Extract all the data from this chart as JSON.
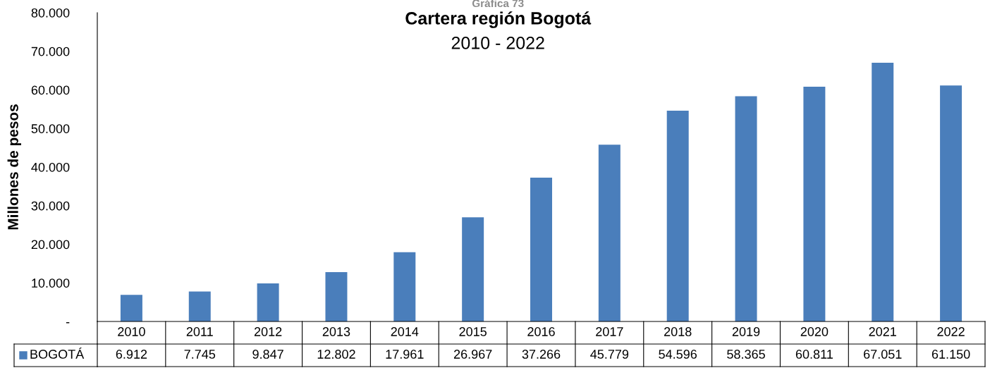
{
  "chart_data": {
    "type": "bar",
    "title": "Cartera región Bogotá",
    "subtitle": "2010 - 2022",
    "annotations": [
      "Gráfica 73"
    ],
    "ylabel": "Millones de pesos",
    "categories": [
      "2010",
      "2011",
      "2012",
      "2013",
      "2014",
      "2015",
      "2016",
      "2017",
      "2018",
      "2019",
      "2020",
      "2021",
      "2022"
    ],
    "series": [
      {
        "name": "BOGOTÁ",
        "color": "#4a7ebb",
        "values": [
          6912,
          7745,
          9847,
          12802,
          17961,
          26967,
          37266,
          45779,
          54596,
          58365,
          60811,
          67051,
          61150
        ]
      }
    ],
    "value_labels": [
      "6.912",
      "7.745",
      "9.847",
      "12.802",
      "17.961",
      "26.967",
      "37.266",
      "45.779",
      "54.596",
      "58.365",
      "60.811",
      "67.051",
      "61.150"
    ],
    "legend": "bottom left",
    "grid": false,
    "ylim": [
      0,
      80000
    ],
    "yticks": [
      {
        "value": 0,
        "label": "-"
      },
      {
        "value": 10000,
        "label": "10.000"
      },
      {
        "value": 20000,
        "label": "20.000"
      },
      {
        "value": 30000,
        "label": "30.000"
      },
      {
        "value": 40000,
        "label": "40.000"
      },
      {
        "value": 50000,
        "label": "50.000"
      },
      {
        "value": 60000,
        "label": "60.000"
      },
      {
        "value": 70000,
        "label": "70.000"
      },
      {
        "value": 80000,
        "label": "80.000"
      }
    ]
  }
}
